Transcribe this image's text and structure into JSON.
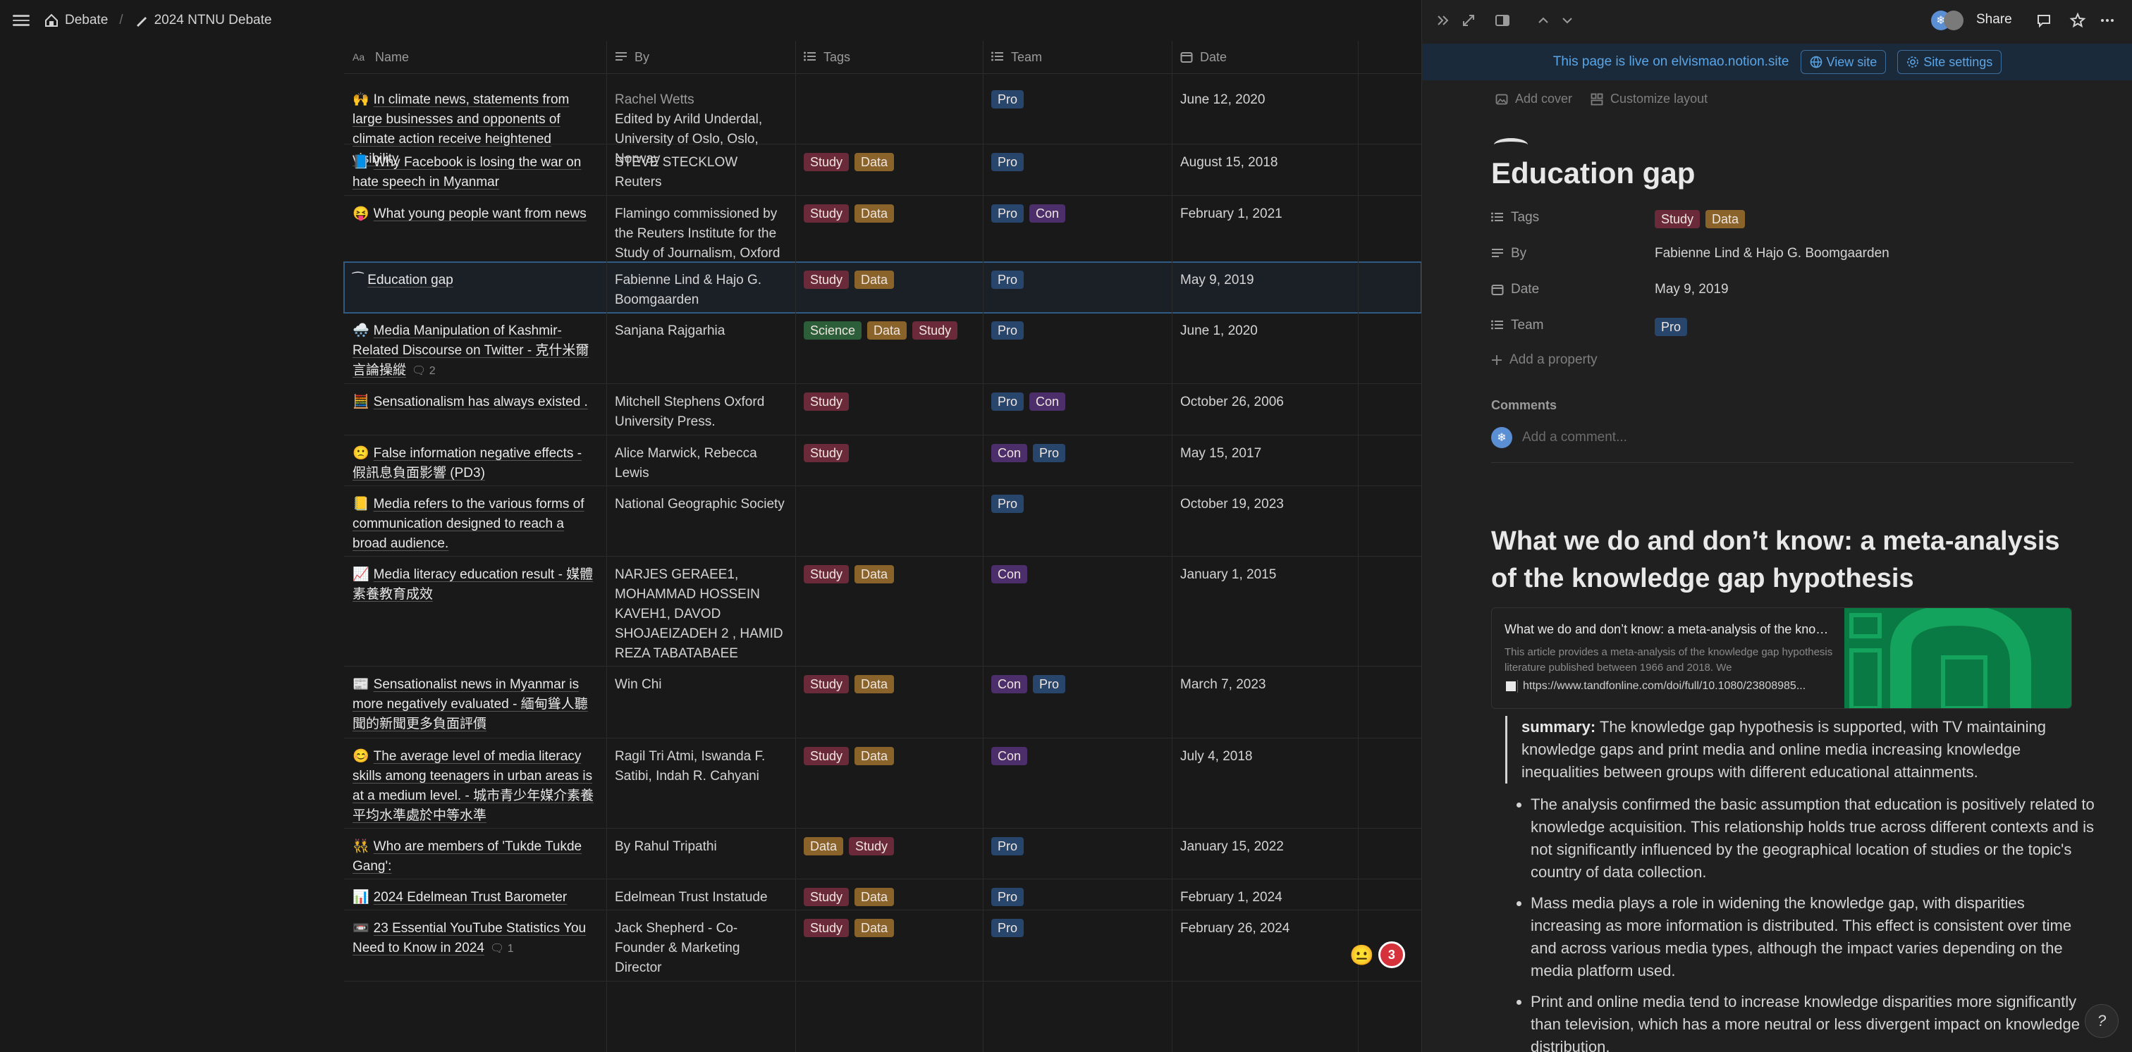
{
  "breadcrumb": [
    {
      "icon": "home-emoji",
      "label": "Debate"
    },
    {
      "icon": "pen-emoji",
      "label": "2024 NTNU Debate"
    }
  ],
  "table": {
    "columns": [
      "Name",
      "By",
      "Tags",
      "Team",
      "Date"
    ],
    "rows": [
      {
        "emoji": "🙌",
        "name": "In climate news, statements from large businesses and opponents of climate action receive heightened visibility",
        "comments": "",
        "by": "Rachel Wetts\nEdited by Arild Underdal, University of Oslo, Oslo, Norway",
        "tags": [],
        "team": [
          "Pro"
        ],
        "date": "June 12, 2020"
      },
      {
        "emoji": "📘",
        "name": "Why Facebook is losing the war on hate speech in Myanmar",
        "comments": "",
        "by": "STEVE STECKLOW Reuters",
        "tags": [
          "Study",
          "Data"
        ],
        "team": [
          "Pro"
        ],
        "date": "August 15, 2018"
      },
      {
        "emoji": "😝",
        "name": "What young people want from news",
        "comments": "",
        "by": "Flamingo commissioned by the Reuters Institute for the Study of Journalism, Oxford University",
        "tags": [
          "Study",
          "Data"
        ],
        "team": [
          "Pro",
          "Con"
        ],
        "date": "February 1, 2021"
      },
      {
        "emoji": "⁀",
        "name": "Education gap",
        "comments": "",
        "by": "Fabienne Lind & Hajo G. Boomgaarden",
        "tags": [
          "Study",
          "Data"
        ],
        "team": [
          "Pro"
        ],
        "date": "May 9, 2019"
      },
      {
        "emoji": "🌨️",
        "name": "Media Manipulation of Kashmir-Related Discourse on Twitter - 克什米爾言論操縱",
        "comments": "2",
        "by": "Sanjana Rajgarhia",
        "tags": [
          "Science",
          "Data",
          "Study"
        ],
        "team": [
          "Pro"
        ],
        "date": "June 1, 2020"
      },
      {
        "emoji": "🧮",
        "name": "Sensationalism has always existed .",
        "comments": "",
        "by": "Mitchell Stephens Oxford University Press.",
        "tags": [
          "Study"
        ],
        "team": [
          "Pro",
          "Con"
        ],
        "date": "October 26, 2006"
      },
      {
        "emoji": "🙁",
        "name": "False information negative effects - 假訊息負面影響 (PD3)",
        "comments": "",
        "by": "Alice Marwick, Rebecca Lewis",
        "tags": [
          "Study"
        ],
        "team": [
          "Con",
          "Pro"
        ],
        "date": "May 15, 2017"
      },
      {
        "emoji": "📒",
        "name": "Media refers to the various forms of communication designed to reach a broad audience.",
        "comments": "",
        "by": "National Geographic Society",
        "tags": [],
        "team": [
          "Pro"
        ],
        "date": "October 19, 2023"
      },
      {
        "emoji": "📈",
        "name": "Media literacy education result - 媒體素養教育成效",
        "comments": "",
        "by": "NARJES GERAEE1, MOHAMMAD HOSSEIN KAVEH1, DAVOD SHOJAEIZADEH 2 , HAMID REZA TABATABAEE",
        "tags": [
          "Study",
          "Data"
        ],
        "team": [
          "Con"
        ],
        "date": "January 1, 2015"
      },
      {
        "emoji": "📰",
        "name": "Sensationalist news in Myanmar is more negatively evaluated - 緬甸聳人聽聞的新聞更多負面評價",
        "comments": "",
        "by": "Win Chi",
        "tags": [
          "Study",
          "Data"
        ],
        "team": [
          "Con",
          "Pro"
        ],
        "date": "March 7, 2023"
      },
      {
        "emoji": "😊",
        "name": "The average level of media literacy skills among teenagers in urban areas is at a medium level. - 城市青少年媒介素養平均水準處於中等水準",
        "comments": "",
        "by": "Ragil Tri Atmi, Iswanda F. Satibi, Indah R. Cahyani",
        "tags": [
          "Study",
          "Data"
        ],
        "team": [
          "Con"
        ],
        "date": "July 4, 2018"
      },
      {
        "emoji": "👯",
        "name": "Who are members of 'Tukde Tukde Gang':",
        "comments": "",
        "by": "By Rahul Tripathi",
        "tags": [
          "Data",
          "Study"
        ],
        "team": [
          "Pro"
        ],
        "date": "January 15, 2022"
      },
      {
        "emoji": "📊",
        "name": "2024 Edelmean Trust Barometer",
        "comments": "",
        "by": "Edelmean Trust Instatude",
        "tags": [
          "Study",
          "Data"
        ],
        "team": [
          "Pro"
        ],
        "date": "February 1, 2024"
      },
      {
        "emoji": "📼",
        "name": "23 Essential YouTube Statistics You Need to Know in 2024",
        "comments": "1",
        "by": "Jack Shepherd - Co-Founder & Marketing Director",
        "tags": [
          "Study",
          "Data"
        ],
        "team": [
          "Pro"
        ],
        "date": "February 26, 2024"
      }
    ]
  },
  "float": {
    "emoji": "😐",
    "badge": "3"
  },
  "panel": {
    "share_label": "Share",
    "live_banner": {
      "text": "This page is live on elvismao.notion.site",
      "view_site": "View site",
      "site_settings": "Site settings"
    },
    "add_cover": "Add cover",
    "customize_layout": "Customize layout",
    "title": "Education gap",
    "props": {
      "tags_label": "Tags",
      "tags": [
        "Study",
        "Data"
      ],
      "by_label": "By",
      "by": "Fabienne Lind & Hajo G. Boomgaarden",
      "date_label": "Date",
      "date": "May 9, 2019",
      "team_label": "Team",
      "team": [
        "Pro"
      ]
    },
    "add_property": "Add a property",
    "comments_label": "Comments",
    "comment_placeholder": "Add a comment...",
    "article_heading": "What we do and don’t know: a meta-analysis of the knowledge gap hypothesis",
    "bookmark": {
      "title": "What we do and don’t know: a meta-analysis of the knowledge gap hypothesis",
      "desc": "This article provides a meta-analysis of the knowledge gap hypothesis literature published between 1966 and 2018. We",
      "url": "https://www.tandfonline.com/doi/full/10.1080/23808985..."
    },
    "summary_label": "summary:",
    "summary": "The knowledge gap hypothesis is supported, with TV maintaining knowledge gaps and print media and online media increasing knowledge inequalities between groups with different educational attainments.",
    "bullets": [
      "The analysis confirmed the basic assumption that education is positively related to knowledge acquisition. This relationship holds true across different contexts and is not significantly influenced by the geographical location of studies or the topic's country of data collection.",
      "Mass media plays a role in widening the knowledge gap, with disparities increasing as more information is distributed. This effect is consistent over time and across various media types, although the impact varies depending on the media platform used.",
      "Print and online media tend to increase knowledge disparities more significantly than television, which has a more neutral or less divergent impact on knowledge distribution."
    ],
    "help": "?"
  },
  "colors": {
    "study": "#6b2a3a",
    "data": "#89632a",
    "science": "#2c5e3a",
    "pro": "#28456b",
    "con": "#4b2e6a",
    "accent": "#5aa5e6"
  }
}
